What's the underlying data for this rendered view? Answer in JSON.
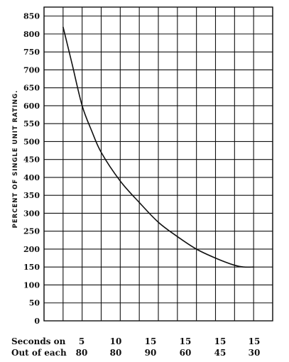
{
  "chart_data": {
    "type": "line",
    "xlabel": "",
    "ylabel": "PERCENT OF SINGLE UNIT RATING.",
    "ylim": [
      0,
      875
    ],
    "yticks": [
      0,
      50,
      100,
      150,
      200,
      250,
      300,
      350,
      400,
      450,
      500,
      550,
      600,
      650,
      700,
      750,
      800,
      850
    ],
    "grid": true,
    "x_positions": [
      0,
      1,
      2,
      3,
      4,
      5,
      6,
      7,
      8,
      9,
      10,
      11,
      12
    ],
    "xlim": [
      0,
      12
    ],
    "categories_rows": [
      {
        "label": "Seconds on",
        "values": [
          "5",
          "10",
          "15",
          "15",
          "15",
          "15"
        ]
      },
      {
        "label": "Out of each",
        "values": [
          "80",
          "80",
          "90",
          "60",
          "45",
          "30"
        ]
      }
    ],
    "category_x": [
      1,
      3,
      5,
      7,
      9,
      11
    ],
    "series": [
      {
        "x": [
          1.0,
          1.5,
          2.0,
          2.5,
          3.0,
          4.0,
          5.0,
          6.0,
          7.0,
          8.0,
          9.0,
          10.0,
          10.5,
          11.0
        ],
        "values": [
          820,
          710,
          600,
          530,
          470,
          390,
          330,
          275,
          235,
          200,
          175,
          155,
          150,
          150
        ]
      }
    ]
  }
}
